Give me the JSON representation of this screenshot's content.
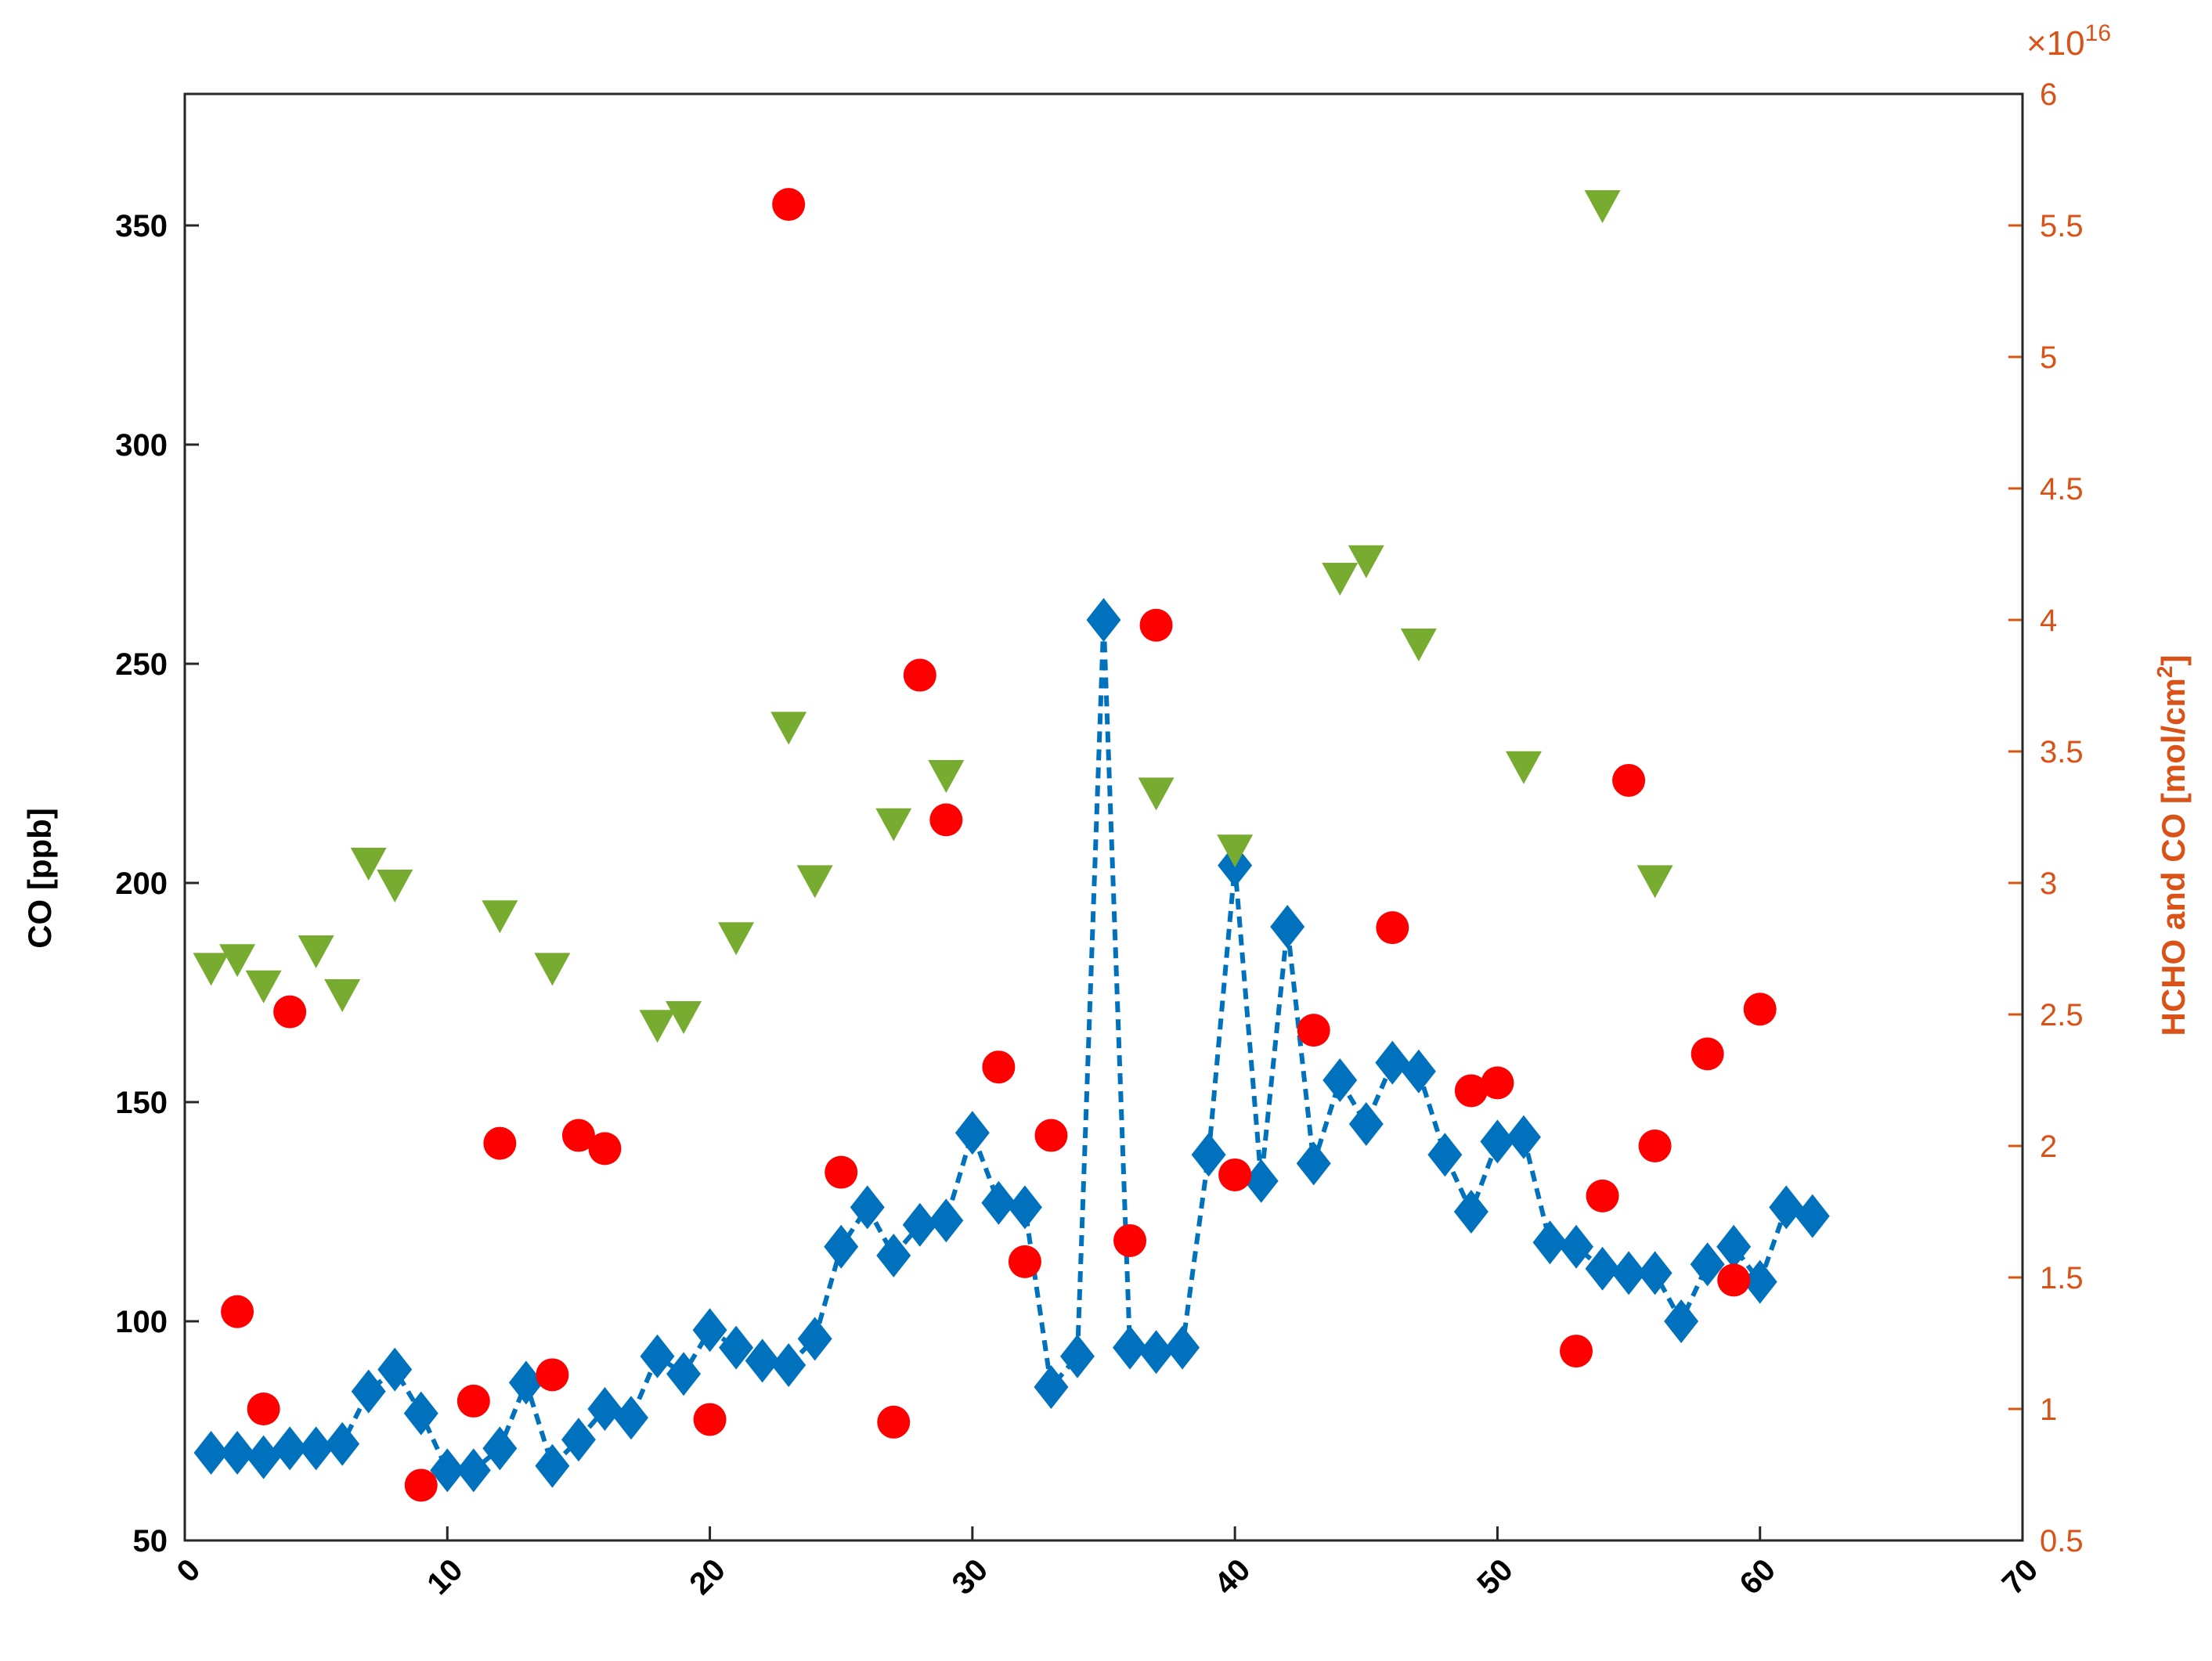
{
  "colors": {
    "left_axis": "#000000",
    "right_axis": "#d95319",
    "co_series": "#0072bd",
    "hcho_series": "#ff0000",
    "co_column_series": "#77ac30"
  },
  "chart_data": {
    "type": "scatter",
    "title": "",
    "xlabel": "",
    "ylabel_left": "CO [ppb]",
    "ylabel_right": "HCHO and CO [mol/cm²]",
    "ylabel_right_base": "HCHO and CO [mol/cm",
    "ylabel_right_sup": "2",
    "ylabel_right_close": "]",
    "right_axis_exponent": "×10",
    "right_axis_exponent_power": "16",
    "xlim": [
      0,
      70
    ],
    "ylim_left": [
      50,
      380
    ],
    "ylim_right": [
      0.5,
      6
    ],
    "x_ticks": [
      "0",
      "10",
      "20",
      "30",
      "40",
      "50",
      "60",
      "70"
    ],
    "y_left_ticks": [
      "50",
      "100",
      "150",
      "200",
      "250",
      "300",
      "350"
    ],
    "y_right_ticks": [
      "0.5",
      "1",
      "1.5",
      "2",
      "2.5",
      "3",
      "3.5",
      "4",
      "4.5",
      "5",
      "5.5",
      "6"
    ],
    "grid": false,
    "legend": "none",
    "series": [
      {
        "axis": "left",
        "marker": "diamond",
        "line": "dashed",
        "color": "#0072bd",
        "x": [
          1,
          2,
          3,
          4,
          5,
          6,
          7,
          8,
          9,
          10,
          11,
          12,
          13,
          14,
          15,
          16,
          17,
          18,
          19,
          20,
          21,
          22,
          23,
          24,
          25,
          26,
          27,
          28,
          29,
          30,
          31,
          32,
          33,
          34,
          35,
          36,
          37,
          38,
          39,
          40,
          41,
          42,
          43,
          44,
          45,
          46,
          47,
          48,
          49,
          50,
          51,
          52,
          53,
          54,
          55,
          56,
          57,
          58,
          59,
          60,
          61,
          62
        ],
        "y": [
          70,
          70,
          69,
          71,
          71,
          72,
          84,
          89,
          79,
          66,
          66,
          71,
          86,
          67,
          73,
          80,
          78,
          92,
          88,
          98,
          94,
          91,
          90,
          96,
          117,
          126,
          115,
          122,
          123,
          143,
          127,
          126,
          85,
          92,
          260,
          94,
          93,
          94,
          138,
          204,
          132,
          190,
          136,
          155,
          145,
          159,
          157,
          138,
          125,
          141,
          142,
          118,
          117,
          112,
          111,
          111,
          100,
          113,
          117,
          109,
          126,
          124
        ]
      },
      {
        "axis": "right",
        "marker": "circle",
        "line": "none",
        "color": "#ff0000",
        "x": [
          2,
          3,
          4,
          9,
          11,
          12,
          14,
          15,
          16,
          20,
          23,
          25,
          27,
          28,
          29,
          31,
          32,
          33,
          36,
          37,
          40,
          43,
          46,
          49,
          50,
          53,
          54,
          55,
          56,
          58,
          59,
          60
        ],
        "y": [
          1.37,
          1.0,
          2.51,
          0.71,
          1.03,
          2.01,
          1.13,
          2.04,
          1.99,
          0.96,
          5.58,
          1.9,
          0.95,
          3.79,
          3.24,
          2.3,
          1.56,
          2.04,
          1.64,
          3.98,
          1.89,
          2.44,
          2.83,
          2.21,
          2.24,
          1.22,
          1.81,
          3.39,
          2.0,
          2.35,
          1.49,
          2.52
        ]
      },
      {
        "axis": "left",
        "marker": "triangle-down",
        "line": "none",
        "color": "#77ac30",
        "x": [
          1,
          2,
          3,
          5,
          6,
          7,
          8,
          12,
          14,
          18,
          19,
          21,
          23,
          24,
          27,
          29,
          37,
          40,
          44,
          45,
          47,
          51,
          54,
          56
        ],
        "y": [
          181,
          183,
          177,
          185,
          175,
          205,
          200,
          193,
          181,
          168,
          170,
          188,
          236,
          201,
          214,
          225,
          221,
          208,
          270,
          274,
          255,
          227,
          355,
          201
        ]
      }
    ]
  }
}
